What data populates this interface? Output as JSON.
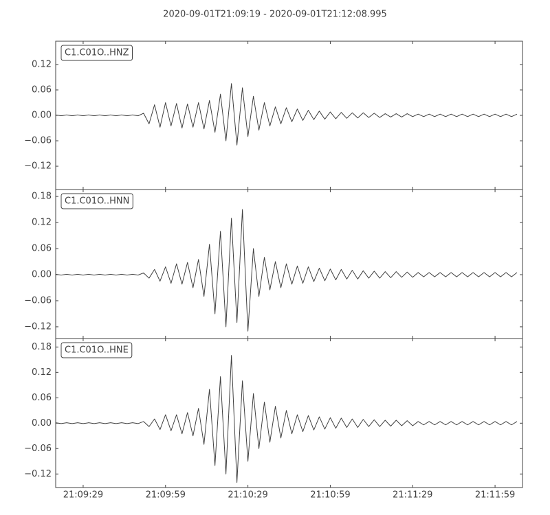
{
  "title": "2020-09-01T21:09:19  -  2020-09-01T21:12:08.995",
  "chart_data": [
    {
      "type": "line",
      "label": "C1.C01O..HNZ",
      "color": "#404040",
      "xlim": [
        0,
        169.995
      ],
      "ylim": [
        -0.175,
        0.175
      ],
      "yticks": [
        {
          "value": -0.12,
          "label": "−0.12"
        },
        {
          "value": -0.06,
          "label": "−0.06"
        },
        {
          "value": 0,
          "label": "0.00"
        },
        0.06,
        0.12
      ],
      "x": [
        0,
        2,
        4,
        6,
        8,
        10,
        12,
        14,
        16,
        18,
        20,
        22,
        24,
        26,
        28,
        30,
        32,
        34,
        36,
        38,
        40,
        42,
        44,
        46,
        48,
        50,
        52,
        54,
        56,
        58,
        60,
        62,
        64,
        66,
        68,
        70,
        72,
        74,
        76,
        78,
        80,
        82,
        84,
        86,
        88,
        90,
        92,
        94,
        96,
        98,
        100,
        102,
        104,
        106,
        108,
        110,
        112,
        114,
        116,
        118,
        120,
        122,
        124,
        126,
        128,
        130,
        132,
        134,
        136,
        138,
        140,
        142,
        144,
        146,
        148,
        150,
        152,
        154,
        156,
        158,
        160,
        162,
        164,
        166,
        168
      ],
      "values": [
        0.001,
        -0.001,
        0.001,
        -0.001,
        0.001,
        -0.001,
        0.001,
        -0.001,
        0.001,
        -0.001,
        0.001,
        -0.001,
        0.001,
        -0.001,
        0.001,
        -0.001,
        0.005,
        -0.02,
        0.025,
        -0.028,
        0.03,
        -0.025,
        0.028,
        -0.03,
        0.027,
        -0.028,
        0.03,
        -0.032,
        0.035,
        -0.04,
        0.05,
        -0.06,
        0.075,
        -0.07,
        0.065,
        -0.05,
        0.045,
        -0.035,
        0.03,
        -0.025,
        0.02,
        -0.02,
        0.018,
        -0.015,
        0.015,
        -0.012,
        0.012,
        -0.01,
        0.01,
        -0.009,
        0.008,
        -0.008,
        0.007,
        -0.007,
        0.006,
        -0.006,
        0.006,
        -0.005,
        0.005,
        -0.005,
        0.004,
        -0.004,
        0.004,
        -0.004,
        0.004,
        -0.003,
        0.003,
        -0.003,
        0.003,
        -0.003,
        0.003,
        -0.003,
        0.003,
        -0.003,
        0.003,
        -0.003,
        0.003,
        -0.003,
        0.003,
        -0.003,
        0.003,
        -0.003,
        0.003,
        -0.003,
        0.003
      ]
    },
    {
      "type": "line",
      "label": "C1.C01O..HNN",
      "color": "#404040",
      "xlim": [
        0,
        169.995
      ],
      "ylim": [
        -0.147,
        0.196
      ],
      "yticks": [
        {
          "value": -0.12,
          "label": "−0.12"
        },
        {
          "value": -0.06,
          "label": "−0.06"
        },
        {
          "value": 0,
          "label": "0.00"
        },
        0.06,
        0.12,
        0.18
      ],
      "x": [
        0,
        2,
        4,
        6,
        8,
        10,
        12,
        14,
        16,
        18,
        20,
        22,
        24,
        26,
        28,
        30,
        32,
        34,
        36,
        38,
        40,
        42,
        44,
        46,
        48,
        50,
        52,
        54,
        56,
        58,
        60,
        62,
        64,
        66,
        68,
        70,
        72,
        74,
        76,
        78,
        80,
        82,
        84,
        86,
        88,
        90,
        92,
        94,
        96,
        98,
        100,
        102,
        104,
        106,
        108,
        110,
        112,
        114,
        116,
        118,
        120,
        122,
        124,
        126,
        128,
        130,
        132,
        134,
        136,
        138,
        140,
        142,
        144,
        146,
        148,
        150,
        152,
        154,
        156,
        158,
        160,
        162,
        164,
        166,
        168
      ],
      "values": [
        0.001,
        -0.001,
        0.001,
        -0.001,
        0.001,
        -0.001,
        0.001,
        -0.001,
        0.001,
        -0.001,
        0.001,
        -0.001,
        0.001,
        -0.001,
        0.001,
        -0.001,
        0.004,
        -0.008,
        0.012,
        -0.015,
        0.018,
        -0.02,
        0.025,
        -0.022,
        0.028,
        -0.03,
        0.035,
        -0.05,
        0.07,
        -0.09,
        0.1,
        -0.12,
        0.13,
        -0.11,
        0.15,
        -0.13,
        0.06,
        -0.05,
        0.04,
        -0.035,
        0.03,
        -0.03,
        0.025,
        -0.022,
        0.02,
        -0.02,
        0.018,
        -0.016,
        0.015,
        -0.014,
        0.013,
        -0.012,
        0.012,
        -0.01,
        0.01,
        -0.01,
        0.009,
        -0.008,
        0.008,
        -0.008,
        0.007,
        -0.007,
        0.007,
        -0.006,
        0.006,
        -0.006,
        0.005,
        -0.005,
        0.005,
        -0.005,
        0.005,
        -0.005,
        0.005,
        -0.005,
        0.005,
        -0.005,
        0.005,
        -0.005,
        0.005,
        -0.005,
        0.005,
        -0.005,
        0.005,
        -0.005,
        0.005
      ]
    },
    {
      "type": "line",
      "label": "C1.C01O..HNE",
      "color": "#404040",
      "xlim": [
        0,
        169.995
      ],
      "ylim": [
        -0.152,
        0.2
      ],
      "yticks": [
        {
          "value": -0.12,
          "label": "−0.12"
        },
        {
          "value": -0.06,
          "label": "−0.06"
        },
        {
          "value": 0,
          "label": "0.00"
        },
        0.06,
        0.12,
        0.18
      ],
      "xticks": [
        {
          "value": 10,
          "label": "21:09:29"
        },
        {
          "value": 40,
          "label": "21:09:59"
        },
        {
          "value": 70,
          "label": "21:10:29"
        },
        {
          "value": 100,
          "label": "21:10:59"
        },
        {
          "value": 130,
          "label": "21:11:29"
        },
        {
          "value": 160,
          "label": "21:11:59"
        }
      ],
      "x": [
        0,
        2,
        4,
        6,
        8,
        10,
        12,
        14,
        16,
        18,
        20,
        22,
        24,
        26,
        28,
        30,
        32,
        34,
        36,
        38,
        40,
        42,
        44,
        46,
        48,
        50,
        52,
        54,
        56,
        58,
        60,
        62,
        64,
        66,
        68,
        70,
        72,
        74,
        76,
        78,
        80,
        82,
        84,
        86,
        88,
        90,
        92,
        94,
        96,
        98,
        100,
        102,
        104,
        106,
        108,
        110,
        112,
        114,
        116,
        118,
        120,
        122,
        124,
        126,
        128,
        130,
        132,
        134,
        136,
        138,
        140,
        142,
        144,
        146,
        148,
        150,
        152,
        154,
        156,
        158,
        160,
        162,
        164,
        166,
        168
      ],
      "values": [
        0.001,
        -0.001,
        0.001,
        -0.001,
        0.001,
        -0.001,
        0.001,
        -0.001,
        0.001,
        -0.001,
        0.001,
        -0.001,
        0.001,
        -0.001,
        0.001,
        -0.001,
        0.004,
        -0.008,
        0.01,
        -0.015,
        0.02,
        -0.018,
        0.02,
        -0.025,
        0.025,
        -0.03,
        0.035,
        -0.05,
        0.08,
        -0.1,
        0.11,
        -0.12,
        0.16,
        -0.14,
        0.1,
        -0.09,
        0.07,
        -0.06,
        0.05,
        -0.045,
        0.04,
        -0.035,
        0.03,
        -0.025,
        0.02,
        -0.02,
        0.018,
        -0.016,
        0.015,
        -0.014,
        0.013,
        -0.012,
        0.012,
        -0.01,
        0.01,
        -0.01,
        0.009,
        -0.008,
        0.008,
        -0.008,
        0.007,
        -0.007,
        0.007,
        -0.006,
        0.006,
        -0.006,
        0.004,
        -0.004,
        0.004,
        -0.004,
        0.004,
        -0.004,
        0.004,
        -0.004,
        0.004,
        -0.004,
        0.004,
        -0.004,
        0.004,
        -0.004,
        0.004,
        -0.004,
        0.004,
        -0.004,
        0.004
      ]
    }
  ]
}
